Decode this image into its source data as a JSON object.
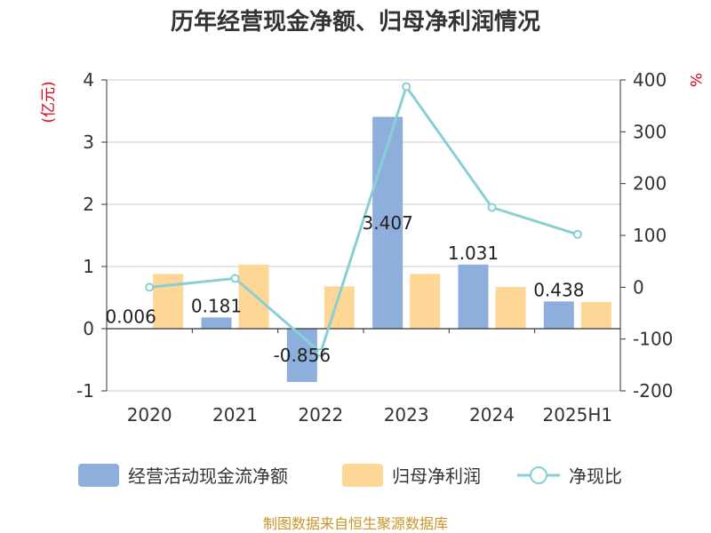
{
  "chart_data": {
    "type": "bar",
    "title": "历年经营现金净额、归母净利润情况",
    "categories": [
      "2020",
      "2021",
      "2022",
      "2023",
      "2024",
      "2025H1"
    ],
    "left_axis": {
      "unit": "(亿元)",
      "min": -1,
      "max": 4,
      "ticks": [
        "-1",
        "0",
        "1",
        "2",
        "3",
        "4"
      ]
    },
    "right_axis": {
      "unit": "%",
      "min": -200,
      "max": 400,
      "ticks": [
        "-200",
        "-100",
        "0",
        "100",
        "200",
        "300",
        "400"
      ]
    },
    "series": [
      {
        "name": "经营活动现金流净额",
        "kind": "bar",
        "axis": "left",
        "color": "#8eaedc",
        "values": [
          0.006,
          0.181,
          -0.856,
          3.407,
          1.031,
          0.438
        ],
        "labels": [
          "0.006",
          "0.181",
          "-0.856",
          "3.407",
          "1.031",
          "0.438"
        ]
      },
      {
        "name": "归母净利润",
        "kind": "bar",
        "axis": "left",
        "color": "#fed796",
        "values": [
          0.88,
          1.03,
          0.68,
          0.88,
          0.67,
          0.43
        ]
      },
      {
        "name": "净现比",
        "kind": "line",
        "axis": "right",
        "color": "#86d0d6",
        "values": [
          0,
          17,
          -126,
          387,
          154,
          102
        ]
      }
    ],
    "grid": true,
    "legend_position": "bottom"
  },
  "source_text": "制图数据来自恒生聚源数据库"
}
